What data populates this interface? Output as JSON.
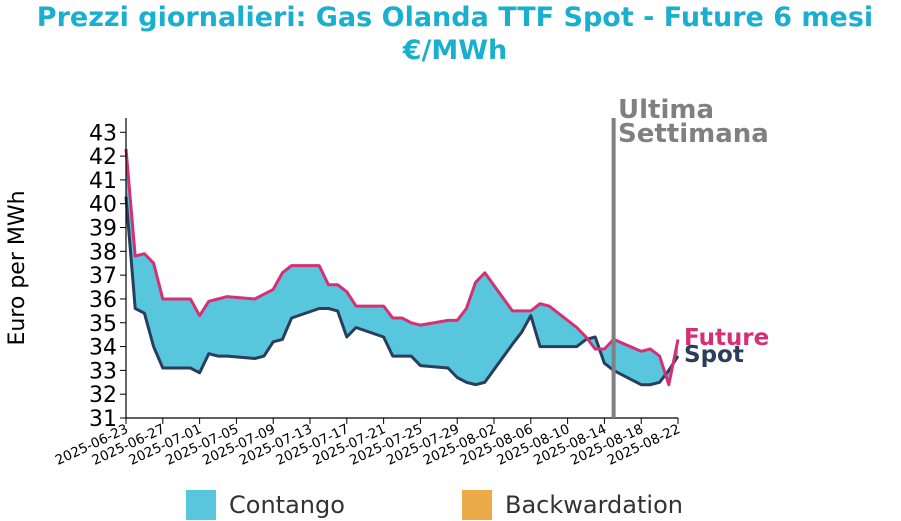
{
  "chart_data": {
    "type": "line",
    "title_line1": "Prezzi giornalieri: Gas Olanda TTF Spot - Future 6 mesi",
    "title_line2": "€/MWh",
    "ylabel": "Euro per MWh",
    "ylim": [
      31,
      43.6
    ],
    "yticks": [
      "31",
      "32",
      "33",
      "34",
      "35",
      "36",
      "37",
      "38",
      "39",
      "40",
      "41",
      "42",
      "43"
    ],
    "xticks": [
      "2025-06-23",
      "2025-06-27",
      "2025-07-01",
      "2025-07-05",
      "2025-07-09",
      "2025-07-13",
      "2025-07-17",
      "2025-07-21",
      "2025-07-25",
      "2025-07-29",
      "2025-08-02",
      "2025-08-06",
      "2025-08-10",
      "2025-08-14",
      "2025-08-18",
      "2025-08-22"
    ],
    "x": [
      "2025-06-23",
      "2025-06-24",
      "2025-06-25",
      "2025-06-26",
      "2025-06-27",
      "2025-06-30",
      "2025-07-01",
      "2025-07-02",
      "2025-07-03",
      "2025-07-04",
      "2025-07-07",
      "2025-07-08",
      "2025-07-09",
      "2025-07-10",
      "2025-07-11",
      "2025-07-14",
      "2025-07-15",
      "2025-07-16",
      "2025-07-17",
      "2025-07-18",
      "2025-07-21",
      "2025-07-22",
      "2025-07-23",
      "2025-07-24",
      "2025-07-25",
      "2025-07-28",
      "2025-07-29",
      "2025-07-30",
      "2025-07-31",
      "2025-08-01",
      "2025-08-04",
      "2025-08-05",
      "2025-08-06",
      "2025-08-07",
      "2025-08-08",
      "2025-08-11",
      "2025-08-12",
      "2025-08-13",
      "2025-08-14",
      "2025-08-15",
      "2025-08-18",
      "2025-08-19",
      "2025-08-20",
      "2025-08-21",
      "2025-08-22"
    ],
    "series": [
      {
        "name": "Future",
        "color": "#d63074",
        "values": [
          42.3,
          37.8,
          37.9,
          37.5,
          36.0,
          36.0,
          35.3,
          35.9,
          36.0,
          36.1,
          36.0,
          36.2,
          36.4,
          37.1,
          37.4,
          37.4,
          36.6,
          36.6,
          36.3,
          35.7,
          35.7,
          35.2,
          35.2,
          35.0,
          34.9,
          35.1,
          35.1,
          35.6,
          36.7,
          37.1,
          35.5,
          35.5,
          35.5,
          35.8,
          35.7,
          34.8,
          34.4,
          33.9,
          33.9,
          34.3,
          33.8,
          33.9,
          33.6,
          32.4,
          34.3
        ]
      },
      {
        "name": "Spot",
        "color": "#2a3d5c",
        "values": [
          40.3,
          35.6,
          35.4,
          34.0,
          33.1,
          33.1,
          32.9,
          33.7,
          33.6,
          33.6,
          33.5,
          33.6,
          34.2,
          34.3,
          35.2,
          35.6,
          35.6,
          35.5,
          34.4,
          34.8,
          34.4,
          33.6,
          33.6,
          33.6,
          33.2,
          33.1,
          32.7,
          32.5,
          32.4,
          32.5,
          34.1,
          34.6,
          35.3,
          34.0,
          34.0,
          34.0,
          34.3,
          34.4,
          33.3,
          33.0,
          32.4,
          32.4,
          32.5,
          33.0,
          33.6
        ]
      }
    ],
    "legend": [
      {
        "label": "Contango",
        "color": "#58c7dd"
      },
      {
        "label": "Backwardation",
        "color": "#ecab48"
      }
    ],
    "legend_position": "bottom",
    "annotation": {
      "text_line1": "Ultima",
      "text_line2": "Settimana",
      "date": "2025-08-15"
    },
    "grid": false
  }
}
